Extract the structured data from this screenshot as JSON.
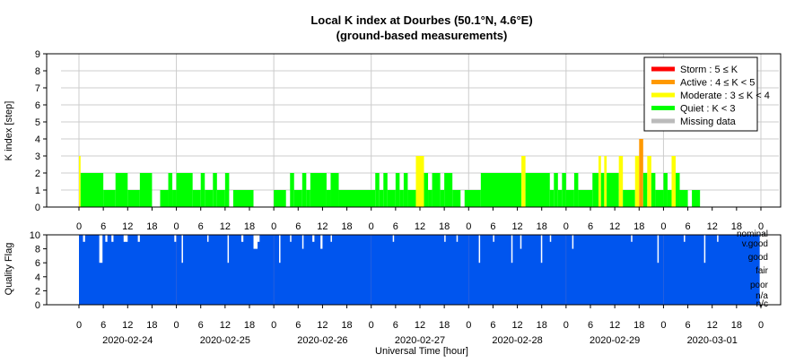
{
  "chart_data": [
    {
      "type": "bar",
      "title": "Local K index at Dourbes (50.1°N, 4.6°E)",
      "subtitle": "(ground-based measurements)",
      "ylabel": "K index [step]",
      "ylim": [
        0,
        9
      ],
      "yticks": [
        "0",
        "1",
        "2",
        "3",
        "4",
        "5",
        "6",
        "7",
        "8",
        "9"
      ],
      "x_range_hours": [
        0,
        168
      ],
      "bin_hours": 3,
      "xtick_hours": [
        "0",
        "6",
        "12",
        "18",
        "0",
        "6",
        "12",
        "18",
        "0",
        "6",
        "12",
        "18",
        "0",
        "6",
        "12",
        "18",
        "0",
        "6",
        "12",
        "18",
        "0",
        "6",
        "12",
        "18",
        "0",
        "6",
        "12",
        "18",
        "0"
      ],
      "grid": true,
      "legend_position": "top-right",
      "legend": [
        {
          "label": "Storm : 5 ≤ K",
          "color": "#ff0000"
        },
        {
          "label": "Active : 4 ≤ K < 5",
          "color": "#ff9900"
        },
        {
          "label": "Moderate : 3 ≤ K < 4",
          "color": "#ffff00"
        },
        {
          "label": "Quiet : K < 3",
          "color": "#00ff00"
        },
        {
          "label": "Missing data",
          "color": "#bbbbbb"
        }
      ],
      "series_colors": {
        "quiet": "#00ff00",
        "moderate": "#ffff00",
        "active": "#ff9900",
        "storm": "#ff0000"
      },
      "bars": [
        {
          "t": 0.0,
          "k": 3,
          "w": 0.4
        },
        {
          "t": 0.4,
          "k": 2,
          "w": 5.6
        },
        {
          "t": 6.0,
          "k": 1,
          "w": 3.0
        },
        {
          "t": 9.0,
          "k": 2,
          "w": 3.0
        },
        {
          "t": 12.0,
          "k": 1,
          "w": 3.0
        },
        {
          "t": 15.0,
          "k": 2,
          "w": 3.0
        },
        {
          "t": 18.0,
          "k": 0,
          "w": 2.0
        },
        {
          "t": 20.0,
          "k": 1,
          "w": 2.0
        },
        {
          "t": 22.0,
          "k": 2,
          "w": 1.0
        },
        {
          "t": 23.0,
          "k": 1,
          "w": 1.0
        },
        {
          "t": 24.0,
          "k": 2,
          "w": 4.0
        },
        {
          "t": 28.0,
          "k": 1,
          "w": 2.0
        },
        {
          "t": 30.0,
          "k": 2,
          "w": 1.0
        },
        {
          "t": 31.0,
          "k": 1,
          "w": 2.0
        },
        {
          "t": 33.0,
          "k": 2,
          "w": 1.0
        },
        {
          "t": 34.0,
          "k": 1,
          "w": 2.0
        },
        {
          "t": 36.0,
          "k": 2,
          "w": 1.0
        },
        {
          "t": 37.0,
          "k": 0,
          "w": 1.0
        },
        {
          "t": 38.0,
          "k": 1,
          "w": 5.0
        },
        {
          "t": 43.0,
          "k": 0,
          "w": 5.0
        },
        {
          "t": 48.0,
          "k": 1,
          "w": 3.0
        },
        {
          "t": 51.0,
          "k": 0,
          "w": 1.0
        },
        {
          "t": 52.0,
          "k": 2,
          "w": 1.0
        },
        {
          "t": 53.0,
          "k": 1,
          "w": 2.0
        },
        {
          "t": 55.0,
          "k": 2,
          "w": 1.0
        },
        {
          "t": 56.0,
          "k": 1,
          "w": 1.0
        },
        {
          "t": 57.0,
          "k": 2,
          "w": 4.0
        },
        {
          "t": 61.0,
          "k": 1,
          "w": 1.0
        },
        {
          "t": 62.0,
          "k": 2,
          "w": 2.0
        },
        {
          "t": 64.0,
          "k": 1,
          "w": 9.0
        },
        {
          "t": 73.0,
          "k": 2,
          "w": 1.0
        },
        {
          "t": 74.0,
          "k": 1,
          "w": 1.0
        },
        {
          "t": 75.0,
          "k": 2,
          "w": 1.0
        },
        {
          "t": 76.0,
          "k": 1,
          "w": 2.0
        },
        {
          "t": 78.0,
          "k": 2,
          "w": 1.0
        },
        {
          "t": 79.0,
          "k": 1,
          "w": 1.0
        },
        {
          "t": 80.0,
          "k": 2,
          "w": 1.0
        },
        {
          "t": 81.0,
          "k": 1,
          "w": 2.0
        },
        {
          "t": 83.0,
          "k": 3,
          "w": 2.0
        },
        {
          "t": 85.0,
          "k": 2,
          "w": 1.0
        },
        {
          "t": 86.0,
          "k": 1,
          "w": 1.0
        },
        {
          "t": 87.0,
          "k": 2,
          "w": 2.0
        },
        {
          "t": 89.0,
          "k": 1,
          "w": 1.0
        },
        {
          "t": 90.0,
          "k": 2,
          "w": 2.0
        },
        {
          "t": 92.0,
          "k": 1,
          "w": 2.0
        },
        {
          "t": 94.0,
          "k": 0,
          "w": 1.0
        },
        {
          "t": 95.0,
          "k": 1,
          "w": 4.0
        },
        {
          "t": 99.0,
          "k": 2,
          "w": 10.0
        },
        {
          "t": 109.0,
          "k": 3,
          "w": 1.0
        },
        {
          "t": 110.0,
          "k": 2,
          "w": 6.0
        },
        {
          "t": 116.0,
          "k": 1,
          "w": 1.0
        },
        {
          "t": 117.0,
          "k": 2,
          "w": 1.0
        },
        {
          "t": 118.0,
          "k": 1,
          "w": 1.0
        },
        {
          "t": 119.0,
          "k": 2,
          "w": 1.0
        },
        {
          "t": 120.0,
          "k": 1,
          "w": 2.0
        },
        {
          "t": 122.0,
          "k": 2,
          "w": 1.0
        },
        {
          "t": 123.0,
          "k": 1,
          "w": 3.0
        },
        {
          "t": 126.0,
          "k": 1,
          "w": 0.5
        },
        {
          "t": 126.5,
          "k": 2,
          "w": 1.5
        },
        {
          "t": 128.0,
          "k": 3,
          "w": 0.6
        },
        {
          "t": 128.6,
          "k": 2,
          "w": 0.8
        },
        {
          "t": 129.4,
          "k": 3,
          "w": 0.6
        },
        {
          "t": 130.0,
          "k": 2,
          "w": 3.0
        },
        {
          "t": 133.0,
          "k": 3,
          "w": 1.0
        },
        {
          "t": 134.0,
          "k": 1,
          "w": 3.0
        },
        {
          "t": 137.0,
          "k": 3,
          "w": 1.0
        },
        {
          "t": 138.0,
          "k": 4,
          "w": 1.0
        },
        {
          "t": 139.0,
          "k": 2,
          "w": 1.0
        },
        {
          "t": 140.0,
          "k": 3,
          "w": 1.0
        },
        {
          "t": 141.0,
          "k": 2,
          "w": 1.0
        },
        {
          "t": 142.0,
          "k": 1,
          "w": 2.0
        },
        {
          "t": 144.0,
          "k": 2,
          "w": 1.0
        },
        {
          "t": 145.0,
          "k": 1,
          "w": 1.0
        },
        {
          "t": 146.0,
          "k": 3,
          "w": 1.0
        },
        {
          "t": 147.0,
          "k": 2,
          "w": 1.0
        },
        {
          "t": 148.0,
          "k": 1,
          "w": 2.0
        },
        {
          "t": 150.0,
          "k": 0,
          "w": 1.0
        },
        {
          "t": 151.0,
          "k": 1,
          "w": 2.0
        },
        {
          "t": 153.0,
          "k": 0,
          "w": 15.0
        }
      ]
    },
    {
      "type": "bar",
      "ylabel": "Quality Flag",
      "ylim": [
        0,
        10
      ],
      "yticks": [
        "0",
        "2",
        "4",
        "6",
        "8",
        "10"
      ],
      "quality_labels": [
        "nominal",
        "v.good",
        "good",
        "fair",
        "poor",
        "n/a",
        "n/c"
      ],
      "bar_color": "#0055ee",
      "xtick_hours": [
        "0",
        "6",
        "12",
        "18",
        "0",
        "6",
        "12",
        "18",
        "0",
        "6",
        "12",
        "18",
        "0",
        "6",
        "12",
        "18",
        "0",
        "6",
        "12",
        "18",
        "0",
        "6",
        "12",
        "18",
        "0",
        "6",
        "12",
        "18",
        "0"
      ],
      "date_labels": [
        "2020-02-24",
        "2020-02-25",
        "2020-02-26",
        "2020-02-27",
        "2020-02-28",
        "2020-02-29",
        "2020-03-01"
      ],
      "xlabel": "Universal Time [hour]",
      "dips": [
        {
          "t": 1.0,
          "v": 9.0,
          "w": 0.5
        },
        {
          "t": 5.0,
          "v": 6.0,
          "w": 0.8
        },
        {
          "t": 6.5,
          "v": 9.0,
          "w": 0.5
        },
        {
          "t": 8.0,
          "v": 9.0,
          "w": 0.5
        },
        {
          "t": 11.0,
          "v": 9.0,
          "w": 1.0
        },
        {
          "t": 14.5,
          "v": 9.0,
          "w": 0.5
        },
        {
          "t": 23.5,
          "v": 9.0,
          "w": 0.5
        },
        {
          "t": 25.3,
          "v": 6.0,
          "w": 0.3
        },
        {
          "t": 31.6,
          "v": 9.0,
          "w": 0.3
        },
        {
          "t": 36.6,
          "v": 6.0,
          "w": 0.3
        },
        {
          "t": 40.0,
          "v": 9.0,
          "w": 0.5
        },
        {
          "t": 43.0,
          "v": 8.0,
          "w": 1.0
        },
        {
          "t": 44.0,
          "v": 9.0,
          "w": 0.5
        },
        {
          "t": 49.3,
          "v": 6.0,
          "w": 0.3
        },
        {
          "t": 52.0,
          "v": 9.0,
          "w": 0.3
        },
        {
          "t": 55.0,
          "v": 8.0,
          "w": 0.3
        },
        {
          "t": 57.5,
          "v": 9.0,
          "w": 0.5
        },
        {
          "t": 59.5,
          "v": 8.0,
          "w": 0.5
        },
        {
          "t": 62.0,
          "v": 9.0,
          "w": 0.3
        },
        {
          "t": 77.3,
          "v": 9.0,
          "w": 0.3
        },
        {
          "t": 90.0,
          "v": 9.0,
          "w": 0.3
        },
        {
          "t": 93.0,
          "v": 9.0,
          "w": 0.3
        },
        {
          "t": 98.5,
          "v": 6.0,
          "w": 0.3
        },
        {
          "t": 102.0,
          "v": 9.0,
          "w": 0.3
        },
        {
          "t": 106.5,
          "v": 6.0,
          "w": 0.3
        },
        {
          "t": 108.7,
          "v": 8.0,
          "w": 0.3
        },
        {
          "t": 113.8,
          "v": 6.0,
          "w": 0.3
        },
        {
          "t": 116.0,
          "v": 9.0,
          "w": 0.3
        },
        {
          "t": 121.5,
          "v": 8.0,
          "w": 0.3
        },
        {
          "t": 136.0,
          "v": 9.0,
          "w": 0.3
        },
        {
          "t": 142.5,
          "v": 6.0,
          "w": 0.3
        },
        {
          "t": 149.0,
          "v": 9.0,
          "w": 0.3
        },
        {
          "t": 154.0,
          "v": 6.0,
          "w": 0.3
        },
        {
          "t": 157.2,
          "v": 9.0,
          "w": 0.3
        }
      ]
    }
  ]
}
